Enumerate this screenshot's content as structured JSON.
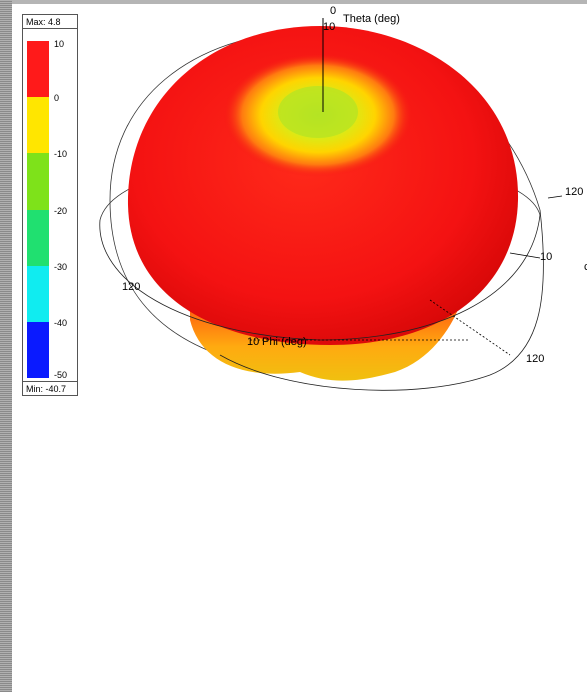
{
  "legend": {
    "max_label": "Max: 4.8",
    "min_label": "Min: -40.7",
    "ticks": [
      "10",
      "0",
      "-10",
      "-20",
      "-30",
      "-40",
      "-50"
    ],
    "band_colors": [
      "#ff1a1a",
      "#ffe600",
      "#7ee21a",
      "#20e070",
      "#10ecf0",
      "#0a1aff"
    ]
  },
  "plot": {
    "theta_axis_label": "Theta (deg)",
    "phi_axis_label": "Phi (deg)",
    "theta_zero": "0",
    "theta_ring_label": "10",
    "ring_labels": {
      "right_upper": "120",
      "right_mid": "10",
      "left": "120",
      "bottom_right": "120",
      "phi_prefix": "10"
    },
    "edge_glyph": "c"
  }
}
